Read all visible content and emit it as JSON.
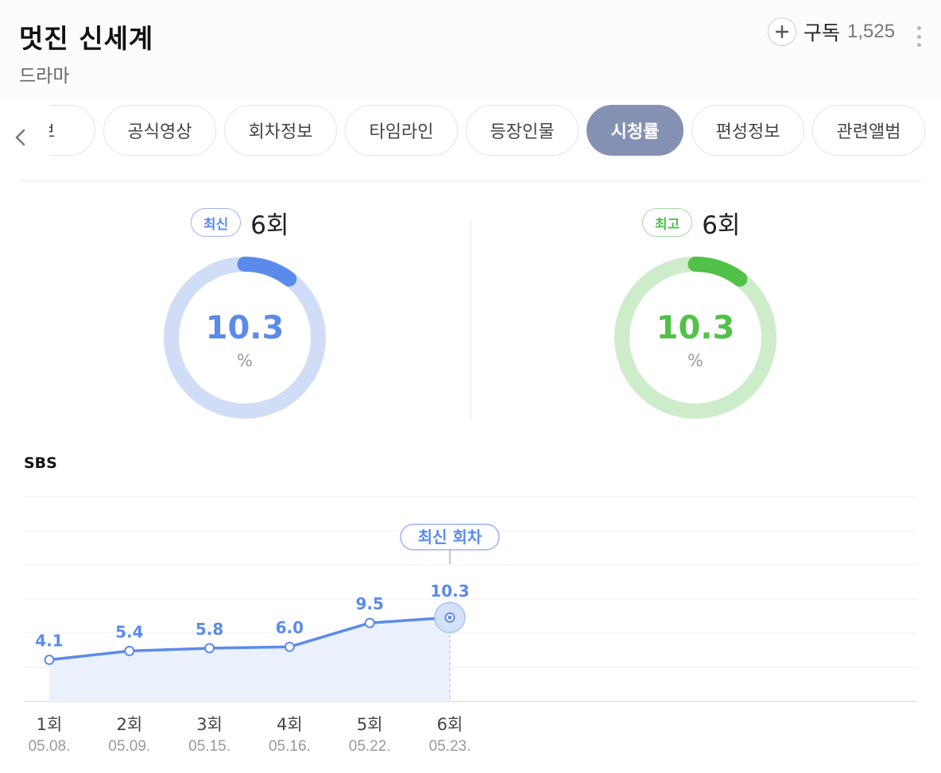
{
  "program": {
    "title": "멋진 신세계",
    "genre": "드라마"
  },
  "subscribe": {
    "label": "구독",
    "count": "1,525",
    "plus_icon": "plus-icon",
    "more_icon": "more-vertical-icon"
  },
  "tabs": [
    {
      "label": "정보",
      "active": false
    },
    {
      "label": "공식영상",
      "active": false
    },
    {
      "label": "회차정보",
      "active": false
    },
    {
      "label": "타임라인",
      "active": false
    },
    {
      "label": "등장인물",
      "active": false
    },
    {
      "label": "시청률",
      "active": true
    },
    {
      "label": "편성정보",
      "active": false
    },
    {
      "label": "관련앨범",
      "active": false
    }
  ],
  "latest": {
    "badge": "최신",
    "episode": "6회",
    "value": "10.3",
    "unit": "%",
    "color": "#5b8bea",
    "track_color": "#d0ddf7"
  },
  "highest": {
    "badge": "최고",
    "episode": "6회",
    "value": "10.3",
    "unit": "%",
    "color": "#52c149",
    "track_color": "#ccecca"
  },
  "channel": "SBS",
  "chart_data": {
    "type": "area",
    "series": [
      {
        "values": [
          4.1,
          5.4,
          5.8,
          6.0,
          9.5,
          10.3
        ]
      }
    ],
    "categories": [
      "1회",
      "2회",
      "3회",
      "4회",
      "5회",
      "6회"
    ],
    "dates": [
      "05.08.",
      "05.09.",
      "05.15.",
      "05.16.",
      "05.22.",
      "05.23."
    ],
    "data_labels": [
      "4.1",
      "5.4",
      "5.8",
      "6.0",
      "9.5",
      "10.3"
    ],
    "annotation": "최신 회차",
    "ylim": [
      -2,
      28
    ],
    "gridlines": 6,
    "legend": "none",
    "line_color": "#5b8bea",
    "fill_color": "#eaf1fd"
  }
}
